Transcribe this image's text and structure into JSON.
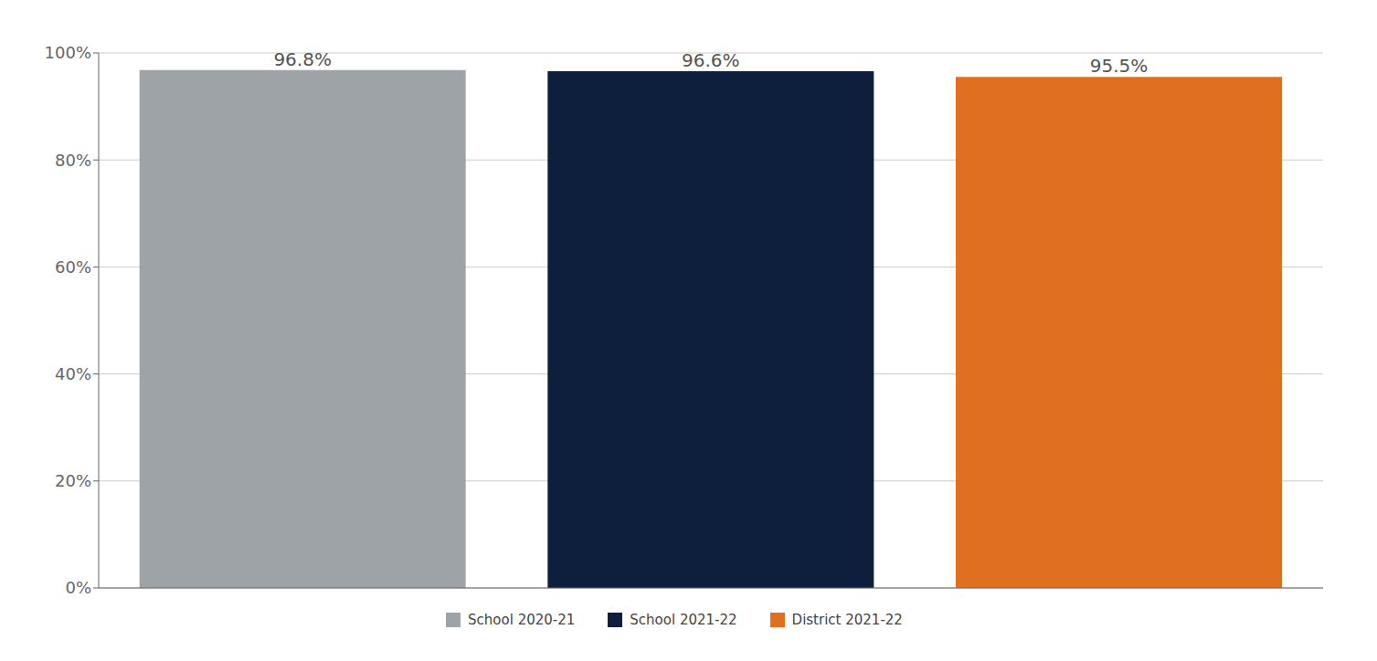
{
  "chart_data": {
    "type": "bar",
    "categories": [
      "School 2020-21",
      "School 2021-22",
      "District 2021-22"
    ],
    "values": [
      0.968,
      0.966,
      0.955
    ],
    "value_labels": [
      "96.8%",
      "96.6%",
      "95.5%"
    ],
    "colors": [
      "#9EA3A8",
      "#0D1F3C",
      "#E07020"
    ],
    "ylim": [
      0,
      1.0
    ],
    "yticks": [
      {
        "value": 0,
        "label": "0%"
      },
      {
        "value": 0.2,
        "label": "20%"
      },
      {
        "value": 0.4,
        "label": "40%"
      },
      {
        "value": 0.6,
        "label": "60%"
      },
      {
        "value": 0.8,
        "label": "80%"
      },
      {
        "value": 1.0,
        "label": "100%"
      }
    ],
    "grid": true,
    "data_labels": true,
    "tick_labels": "y",
    "legend": "bottom"
  }
}
